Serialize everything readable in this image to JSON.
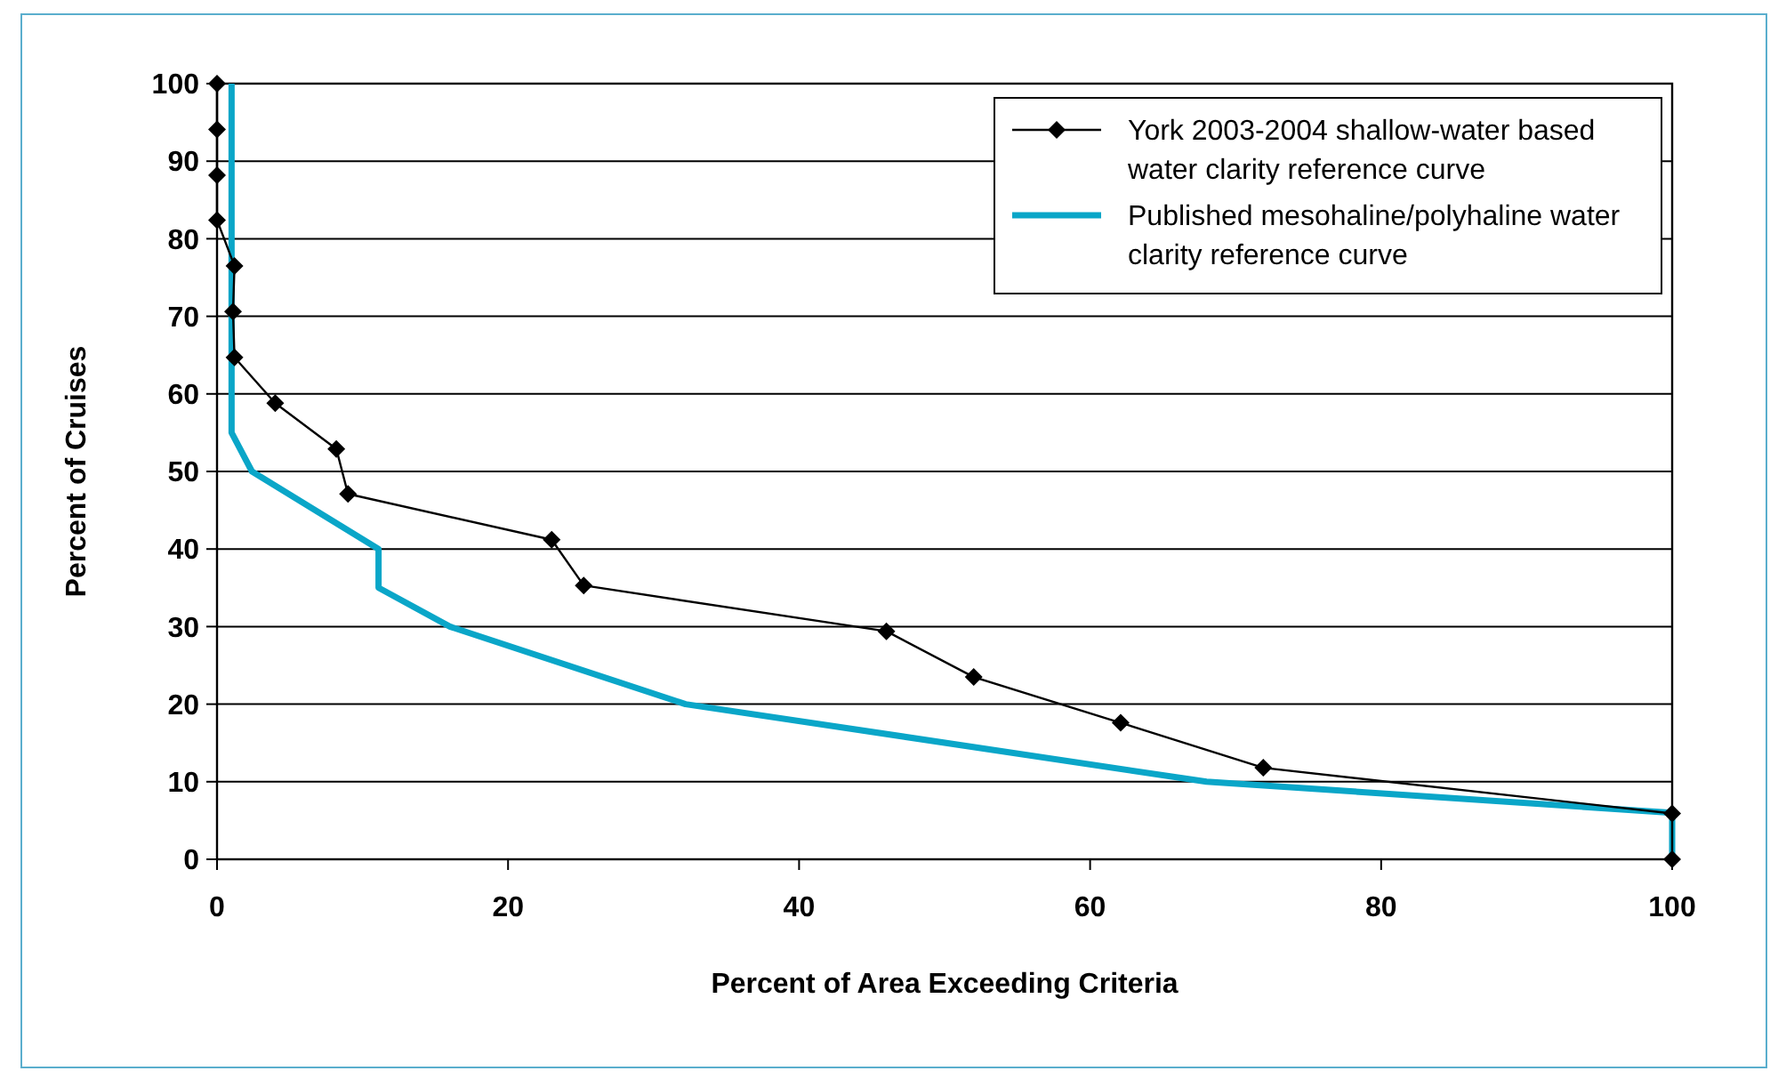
{
  "chart_data": {
    "type": "line",
    "xlabel": "Percent of Area Exceeding Criteria",
    "ylabel": "Percent of Cruises",
    "xlim": [
      0,
      100
    ],
    "xticks": [
      0,
      20,
      40,
      60,
      80,
      100
    ],
    "ylim": [
      0,
      100
    ],
    "yticks": [
      0,
      10,
      20,
      30,
      40,
      50,
      60,
      70,
      80,
      90,
      100
    ],
    "grid": "y",
    "legend": "top right",
    "series": [
      {
        "name": "York 2003-2004 shallow-water based water clarity reference curve",
        "color": "#000000",
        "marker": "diamond",
        "x": [
          0,
          0,
          0,
          0,
          1.2,
          1.1,
          1.2,
          4,
          8.2,
          9,
          23,
          25.2,
          46,
          52,
          62.1,
          71.9,
          100,
          100
        ],
        "values": [
          100,
          94.1,
          88.2,
          82.4,
          76.5,
          70.6,
          64.7,
          58.8,
          52.9,
          47.1,
          41.2,
          35.3,
          29.4,
          23.5,
          17.6,
          11.8,
          5.9,
          0
        ]
      },
      {
        "name": "Published mesohaline/polyhaline water clarity reference curve",
        "color": "#0aa6c8",
        "marker": "none",
        "x": [
          1,
          1,
          2.4,
          11.1,
          11.1,
          16,
          32.2,
          68,
          100,
          100
        ],
        "values": [
          100,
          55,
          50,
          40,
          35,
          30,
          20,
          10,
          6,
          0
        ]
      }
    ]
  }
}
